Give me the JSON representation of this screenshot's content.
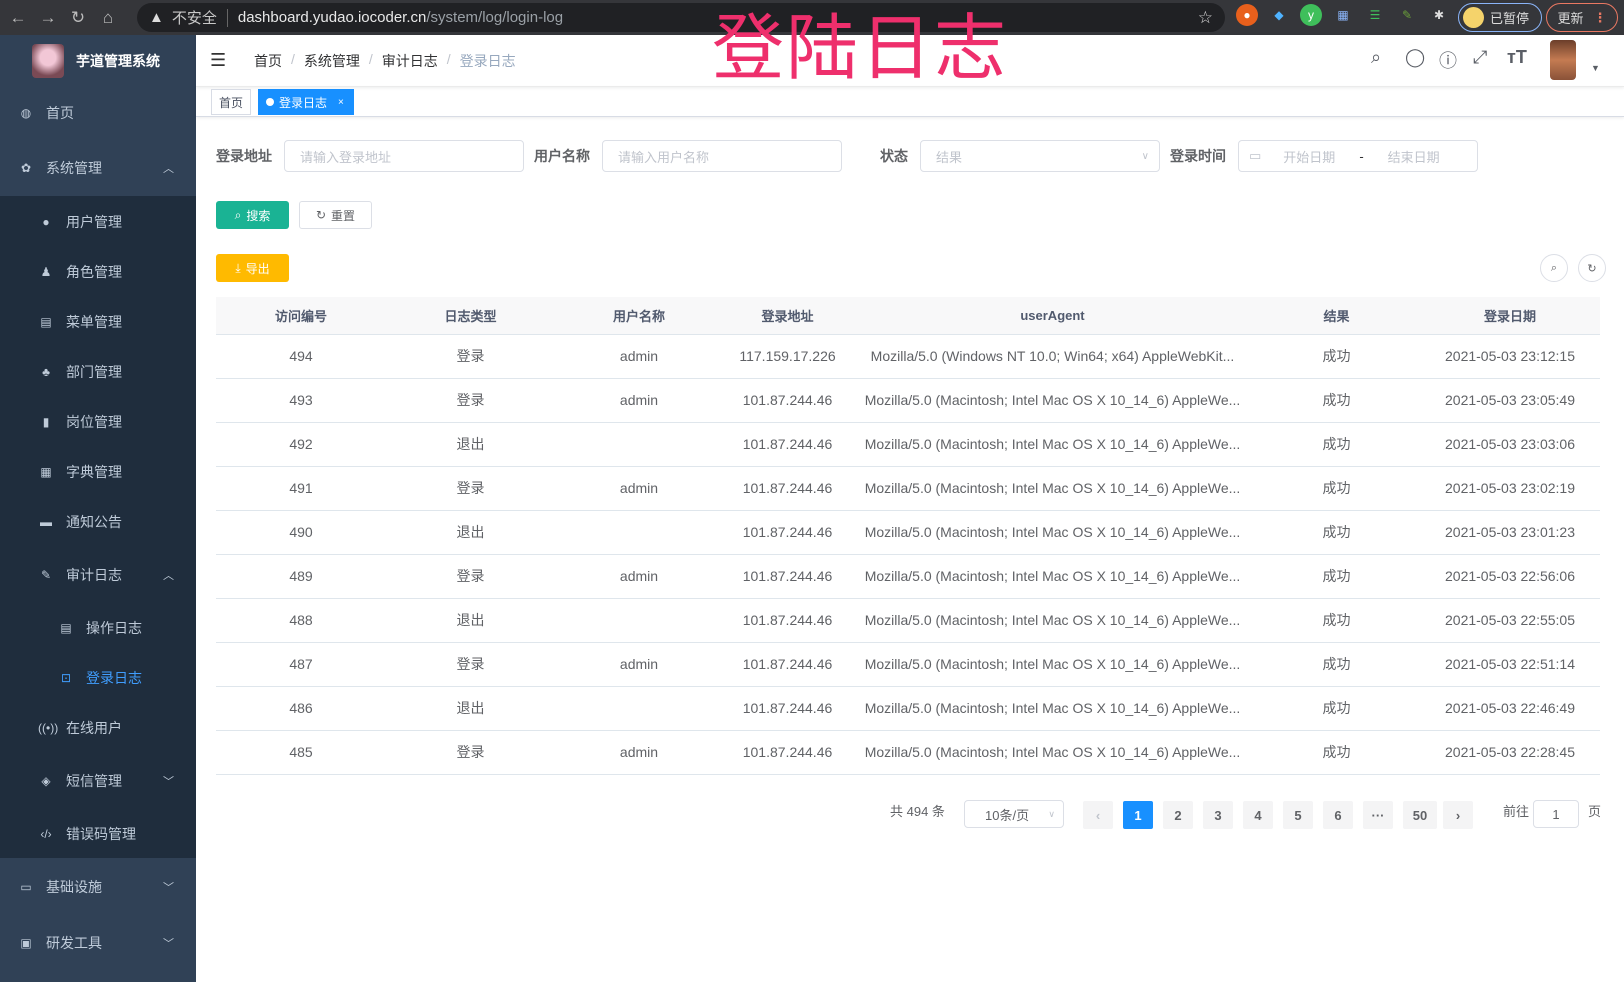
{
  "browser": {
    "security": "不安全",
    "host": "dashboard.yudao.iocoder.cn",
    "path": "/system/log/login-log",
    "paused_label": "已暂停",
    "update_label": "更新"
  },
  "overlay_title": "登陆日志",
  "sidebar": {
    "app_title": "芋道管理系统",
    "items": [
      {
        "label": "首页",
        "icon": "dashboard-icon",
        "level": 0
      },
      {
        "label": "系统管理",
        "icon": "gear-icon",
        "level": 0,
        "expanded": true
      },
      {
        "label": "用户管理",
        "icon": "user-icon",
        "level": 1
      },
      {
        "label": "角色管理",
        "icon": "peoples-icon",
        "level": 1
      },
      {
        "label": "菜单管理",
        "icon": "tree-table-icon",
        "level": 1
      },
      {
        "label": "部门管理",
        "icon": "tree-icon",
        "level": 1
      },
      {
        "label": "岗位管理",
        "icon": "post-icon",
        "level": 1
      },
      {
        "label": "字典管理",
        "icon": "dict-icon",
        "level": 1
      },
      {
        "label": "通知公告",
        "icon": "message-icon",
        "level": 1
      },
      {
        "label": "审计日志",
        "icon": "log-icon",
        "level": 1,
        "expanded": true
      },
      {
        "label": "操作日志",
        "icon": "form-icon",
        "level": 2
      },
      {
        "label": "登录日志",
        "icon": "logininfor-icon",
        "level": 2,
        "active": true
      },
      {
        "label": "在线用户",
        "icon": "online-icon",
        "level": 1
      },
      {
        "label": "短信管理",
        "icon": "validcode-icon",
        "level": 1,
        "expanded": false
      },
      {
        "label": "错误码管理",
        "icon": "code-icon",
        "level": 1
      },
      {
        "label": "基础设施",
        "icon": "monitor-icon",
        "level": 0,
        "expanded": false
      },
      {
        "label": "研发工具",
        "icon": "tool-icon",
        "level": 0,
        "expanded": false
      }
    ]
  },
  "breadcrumb": [
    "首页",
    "系统管理",
    "审计日志",
    "登录日志"
  ],
  "tags": {
    "home": "首页",
    "active": "登录日志"
  },
  "form": {
    "ip_label": "登录地址",
    "ip_placeholder": "请输入登录地址",
    "user_label": "用户名称",
    "user_placeholder": "请输入用户名称",
    "status_label": "状态",
    "status_placeholder": "结果",
    "time_label": "登录时间",
    "start_placeholder": "开始日期",
    "range_sep": "-",
    "end_placeholder": "结束日期",
    "search": "搜索",
    "reset": "重置",
    "export": "导出"
  },
  "colors": {
    "sidebar": "#304156",
    "active": "#409eff",
    "search": "#1ab394",
    "export": "#ffba00",
    "overlay": "#ee2f6c"
  },
  "table": {
    "columns": [
      "访问编号",
      "日志类型",
      "用户名称",
      "登录地址",
      "userAgent",
      "结果",
      "登录日期"
    ],
    "rows": [
      [
        "494",
        "登录",
        "admin",
        "117.159.17.226",
        "Mozilla/5.0 (Windows NT 10.0; Win64; x64) AppleWebKit...",
        "成功",
        "2021-05-03 23:12:15"
      ],
      [
        "493",
        "登录",
        "admin",
        "101.87.244.46",
        "Mozilla/5.0 (Macintosh; Intel Mac OS X 10_14_6) AppleWe...",
        "成功",
        "2021-05-03 23:05:49"
      ],
      [
        "492",
        "退出",
        "",
        "101.87.244.46",
        "Mozilla/5.0 (Macintosh; Intel Mac OS X 10_14_6) AppleWe...",
        "成功",
        "2021-05-03 23:03:06"
      ],
      [
        "491",
        "登录",
        "admin",
        "101.87.244.46",
        "Mozilla/5.0 (Macintosh; Intel Mac OS X 10_14_6) AppleWe...",
        "成功",
        "2021-05-03 23:02:19"
      ],
      [
        "490",
        "退出",
        "",
        "101.87.244.46",
        "Mozilla/5.0 (Macintosh; Intel Mac OS X 10_14_6) AppleWe...",
        "成功",
        "2021-05-03 23:01:23"
      ],
      [
        "489",
        "登录",
        "admin",
        "101.87.244.46",
        "Mozilla/5.0 (Macintosh; Intel Mac OS X 10_14_6) AppleWe...",
        "成功",
        "2021-05-03 22:56:06"
      ],
      [
        "488",
        "退出",
        "",
        "101.87.244.46",
        "Mozilla/5.0 (Macintosh; Intel Mac OS X 10_14_6) AppleWe...",
        "成功",
        "2021-05-03 22:55:05"
      ],
      [
        "487",
        "登录",
        "admin",
        "101.87.244.46",
        "Mozilla/5.0 (Macintosh; Intel Mac OS X 10_14_6) AppleWe...",
        "成功",
        "2021-05-03 22:51:14"
      ],
      [
        "486",
        "退出",
        "",
        "101.87.244.46",
        "Mozilla/5.0 (Macintosh; Intel Mac OS X 10_14_6) AppleWe...",
        "成功",
        "2021-05-03 22:46:49"
      ],
      [
        "485",
        "登录",
        "admin",
        "101.87.244.46",
        "Mozilla/5.0 (Macintosh; Intel Mac OS X 10_14_6) AppleWe...",
        "成功",
        "2021-05-03 22:28:45"
      ]
    ]
  },
  "pagination": {
    "total": "共 494 条",
    "page_size": "10条/页",
    "pages": [
      "1",
      "2",
      "3",
      "4",
      "5",
      "6",
      "···",
      "50"
    ],
    "current": "1",
    "goto_label": "前往",
    "goto_value": "1",
    "goto_suffix": "页"
  }
}
